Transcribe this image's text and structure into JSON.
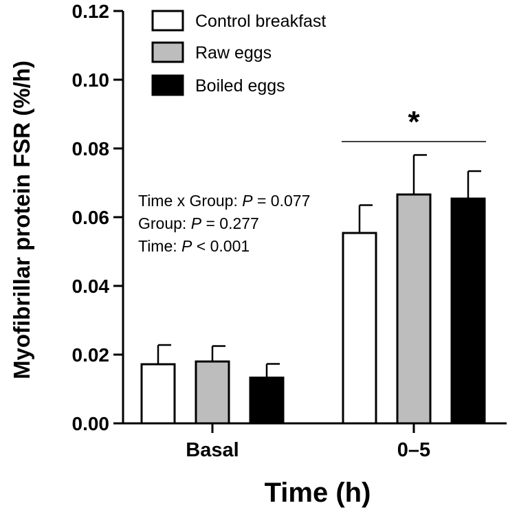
{
  "chart_data": {
    "type": "bar",
    "title": "",
    "xlabel": "Time (h)",
    "ylabel": "Myofibrillar protein FSR (%/h)",
    "ylim": [
      0,
      0.12
    ],
    "yticks": [
      "0.00",
      "0.02",
      "0.04",
      "0.06",
      "0.08",
      "0.10",
      "0.12"
    ],
    "categories": [
      "Basal",
      "0–5"
    ],
    "series": [
      {
        "name": "Control breakfast",
        "color": "#ffffff",
        "values": [
          0.0172,
          0.0554
        ],
        "errors": [
          0.0056,
          0.0081
        ]
      },
      {
        "name": "Raw eggs",
        "color": "#bdbdbd",
        "values": [
          0.018,
          0.0666
        ],
        "errors": [
          0.0045,
          0.0115
        ]
      },
      {
        "name": "Boiled eggs",
        "color": "#000000",
        "values": [
          0.0133,
          0.0654
        ],
        "errors": [
          0.004,
          0.008
        ]
      }
    ],
    "legend_position": "top-left",
    "significance": {
      "marker": "*",
      "category": "0–5"
    },
    "stats": {
      "line1_label": "Time x Group: ",
      "line1_p": "P",
      "line1_value": " = 0.077",
      "line2_label": "Group: ",
      "line2_p": "P",
      "line2_value": " = 0.277",
      "line3_label": "Time: ",
      "line3_p": "P",
      "line3_value": " < 0.001"
    }
  }
}
